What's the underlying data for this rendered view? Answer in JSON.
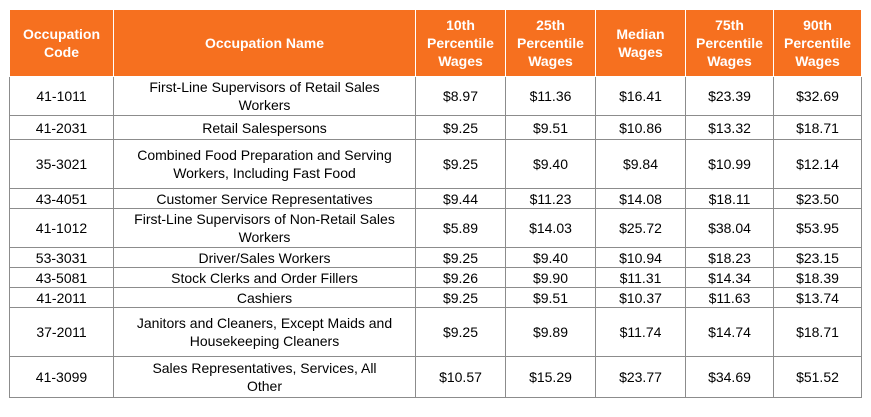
{
  "header": {
    "code": [
      "Occupation",
      "Code"
    ],
    "name": [
      "Occupation Name"
    ],
    "p10": [
      "10th",
      "Percentile",
      "Wages"
    ],
    "p25": [
      "25th",
      "Percentile",
      "Wages"
    ],
    "median": [
      "Median",
      "Wages"
    ],
    "p75": [
      "75th",
      "Percentile",
      "Wages"
    ],
    "p90": [
      "90th",
      "Percentile",
      "Wages"
    ]
  },
  "rows": [
    {
      "code": "41-1011",
      "name": [
        "First-Line Supervisors of Retail Sales",
        "Workers"
      ],
      "p10": "$8.97",
      "p25": "$11.36",
      "median": "$16.41",
      "p75": "$23.39",
      "p90": "$32.69"
    },
    {
      "code": "41-2031",
      "name": [
        "Retail Salespersons"
      ],
      "p10": "$9.25",
      "p25": "$9.51",
      "median": "$10.86",
      "p75": "$13.32",
      "p90": "$18.71"
    },
    {
      "code": "35-3021",
      "name": [
        "Combined Food Preparation and Serving",
        "Workers, Including Fast Food"
      ],
      "p10": "$9.25",
      "p25": "$9.40",
      "median": "$9.84",
      "p75": "$10.99",
      "p90": "$12.14"
    },
    {
      "code": "43-4051",
      "name": [
        "Customer Service Representatives"
      ],
      "p10": "$9.44",
      "p25": "$11.23",
      "median": "$14.08",
      "p75": "$18.11",
      "p90": "$23.50"
    },
    {
      "code": "41-1012",
      "name": [
        "First-Line Supervisors of Non-Retail Sales",
        "Workers"
      ],
      "p10": "$5.89",
      "p25": "$14.03",
      "median": "$25.72",
      "p75": "$38.04",
      "p90": "$53.95"
    },
    {
      "code": "53-3031",
      "name": [
        "Driver/Sales Workers"
      ],
      "p10": "$9.25",
      "p25": "$9.40",
      "median": "$10.94",
      "p75": "$18.23",
      "p90": "$23.15"
    },
    {
      "code": "43-5081",
      "name": [
        "Stock Clerks and Order Fillers"
      ],
      "p10": "$9.26",
      "p25": "$9.90",
      "median": "$11.31",
      "p75": "$14.34",
      "p90": "$18.39"
    },
    {
      "code": "41-2011",
      "name": [
        "Cashiers"
      ],
      "p10": "$9.25",
      "p25": "$9.51",
      "median": "$10.37",
      "p75": "$11.63",
      "p90": "$13.74"
    },
    {
      "code": "37-2011",
      "name": [
        "Janitors and Cleaners, Except Maids and",
        "Housekeeping Cleaners"
      ],
      "p10": "$9.25",
      "p25": "$9.89",
      "median": "$11.74",
      "p75": "$14.74",
      "p90": "$18.71"
    },
    {
      "code": "41-3099",
      "name": [
        "Sales Representatives, Services, All",
        "Other"
      ],
      "p10": "$10.57",
      "p25": "$15.29",
      "median": "$23.77",
      "p75": "$34.69",
      "p90": "$51.52"
    }
  ]
}
